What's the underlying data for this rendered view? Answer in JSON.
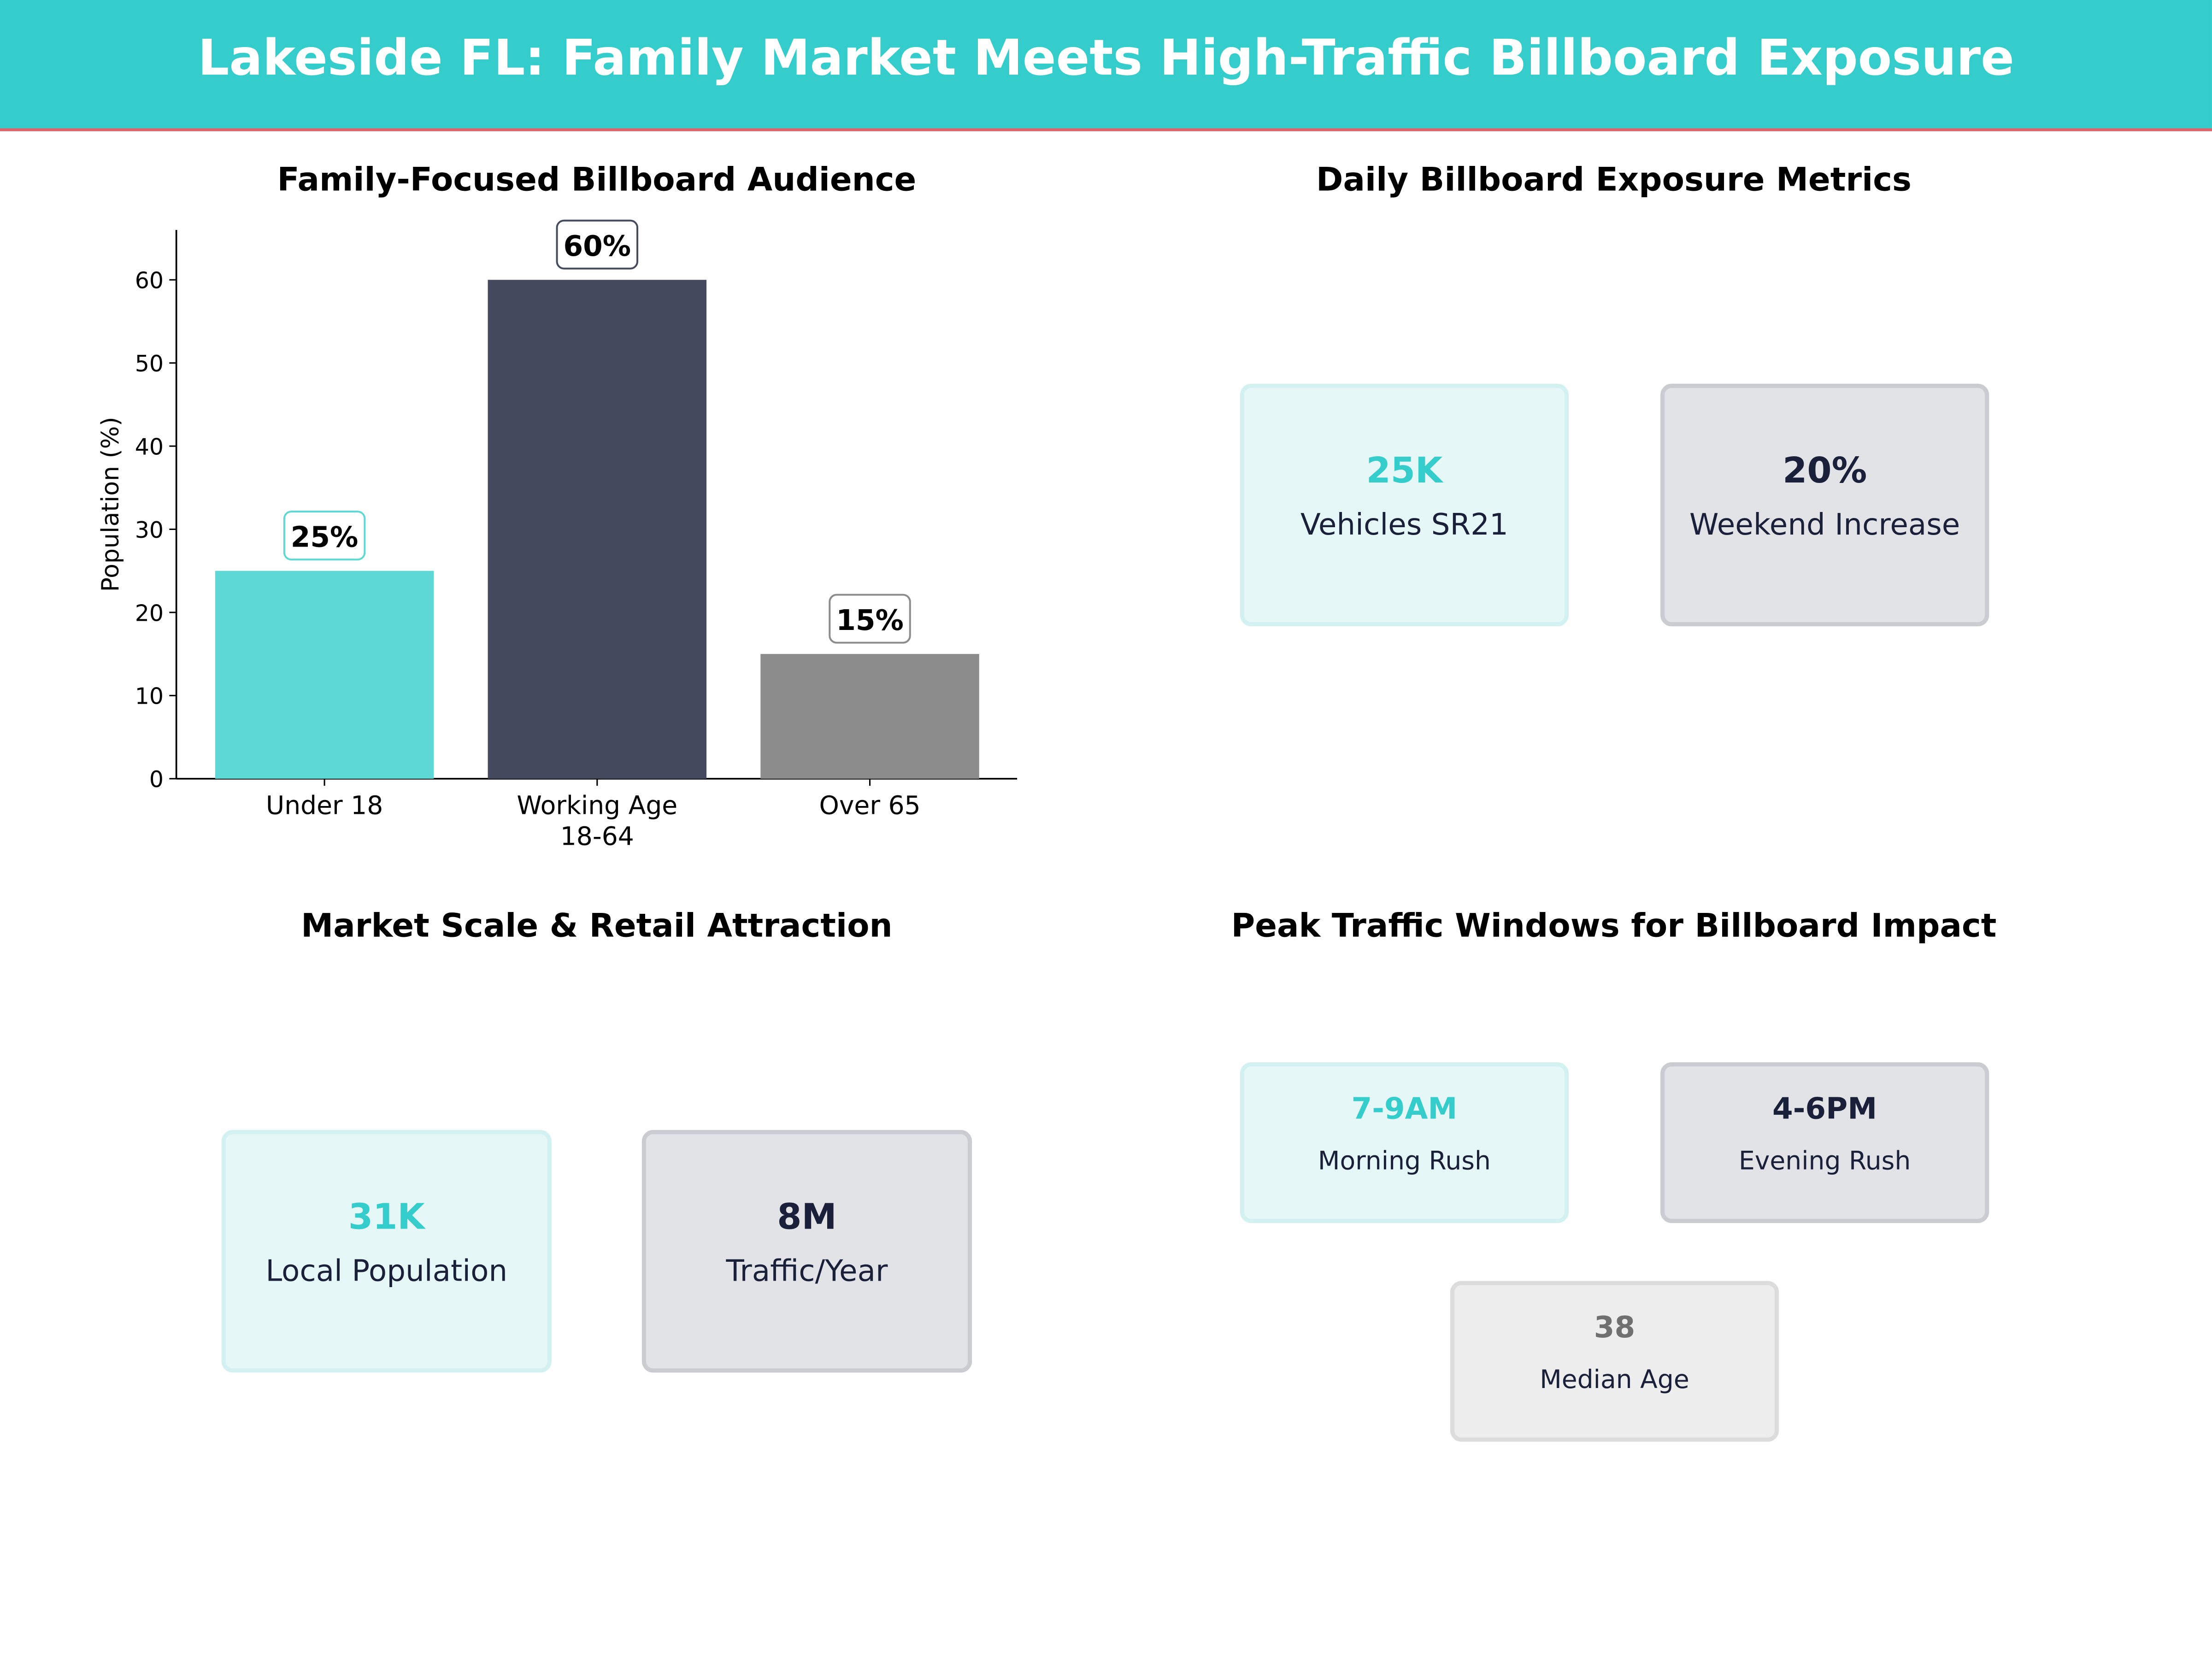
{
  "header": {
    "title": "Lakeside FL: Family Market Meets High-Traffic Billboard Exposure"
  },
  "colors": {
    "header": "#35CCCC",
    "accent_line": "#E8606A",
    "teal": "#5DD8D4",
    "navy": "#464A5E",
    "grey": "#8C8C8C"
  },
  "chart_data": {
    "type": "bar",
    "title": "Family-Focused Billboard Audience",
    "xlabel": "",
    "ylabel": "Population (%)",
    "categories": [
      "Under 18",
      "Working Age\n18-64",
      "Over 65"
    ],
    "values": [
      25,
      60,
      15
    ],
    "data_labels": [
      "25%",
      "60%",
      "15%"
    ],
    "bar_colors": [
      "#5DD8D4",
      "#464A5E",
      "#8C8C8C"
    ],
    "ylim": [
      0,
      66
    ],
    "yticks": [
      0,
      10,
      20,
      30,
      40,
      50,
      60
    ],
    "grid": false
  },
  "exposure": {
    "title": "Daily Billboard Exposure Metrics",
    "cards": [
      {
        "value": "25K",
        "label": "Vehicles SR21"
      },
      {
        "value": "20%",
        "label": "Weekend Increase"
      }
    ]
  },
  "market": {
    "title": "Market Scale & Retail Attraction",
    "cards": [
      {
        "value": "31K",
        "label": "Local Population"
      },
      {
        "value": "8M",
        "label": "Traffic/Year"
      }
    ]
  },
  "peak": {
    "title": "Peak Traffic Windows for Billboard Impact",
    "cards": [
      {
        "value": "7-9AM",
        "label": "Morning Rush"
      },
      {
        "value": "4-6PM",
        "label": "Evening Rush"
      },
      {
        "value": "38",
        "label": "Median Age"
      }
    ]
  }
}
